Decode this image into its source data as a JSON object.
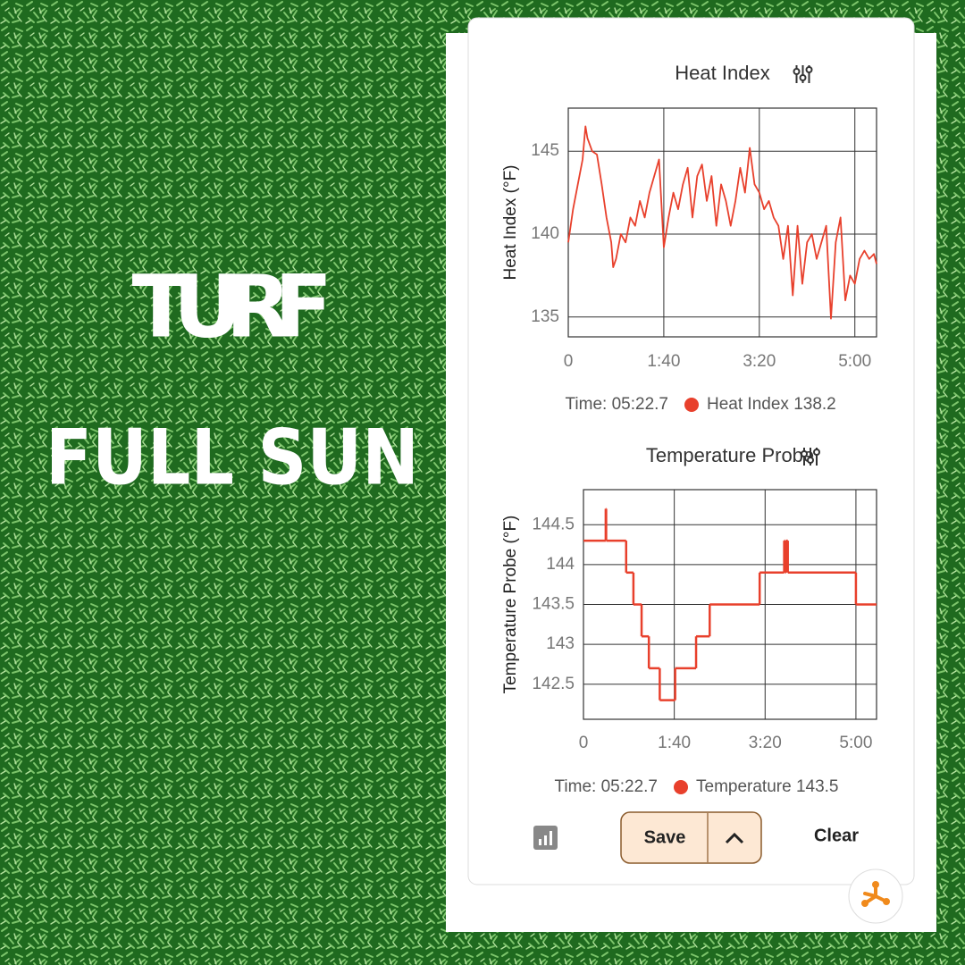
{
  "overlay": {
    "line1": "TURF",
    "line2": "FULL SUN"
  },
  "controls": {
    "save": "Save",
    "clear": "Clear"
  },
  "chart_data": [
    {
      "type": "line",
      "title": "Heat Index",
      "y_label": "Heat Index (°F)",
      "x": [
        0,
        5,
        10,
        15,
        18,
        20,
        25,
        30,
        35,
        40,
        45,
        47,
        50,
        55,
        60,
        65,
        70,
        75,
        80,
        85,
        90,
        95,
        100,
        105,
        110,
        115,
        120,
        125,
        130,
        135,
        140,
        145,
        150,
        155,
        160,
        165,
        170,
        175,
        180,
        185,
        190,
        195,
        200,
        205,
        210,
        215,
        220,
        225,
        230,
        235,
        240,
        245,
        250,
        255,
        260,
        265,
        270,
        275,
        280,
        285,
        290,
        295,
        300,
        305,
        310,
        315,
        320,
        322.7
      ],
      "series": [
        {
          "name": "Heat Index",
          "color": "#e8402c",
          "values": [
            139.5,
            141.5,
            143,
            144.5,
            146.5,
            145.8,
            145,
            144.8,
            143,
            141,
            139.5,
            138,
            138.5,
            140,
            139.5,
            141,
            140.5,
            142,
            141,
            142.5,
            143.5,
            144.5,
            139.2,
            141,
            142.5,
            141.5,
            143,
            144,
            141,
            143.5,
            144.2,
            142,
            143.5,
            140.5,
            143,
            142,
            140.5,
            142,
            144,
            142.5,
            145.2,
            143,
            142.5,
            141.5,
            142,
            141,
            140.5,
            138.5,
            140.5,
            136.3,
            140.5,
            137,
            139.5,
            140,
            138.5,
            139.5,
            140.5,
            134.9,
            139.5,
            141,
            136,
            137.5,
            137,
            138.5,
            139,
            138.5,
            138.8,
            138.2
          ]
        }
      ],
      "xlim": [
        0,
        322.7
      ],
      "ylim": [
        133.8,
        147.6
      ],
      "xticks": [
        {
          "value": 0,
          "label": "0"
        },
        {
          "value": 100,
          "label": "1:40"
        },
        {
          "value": 200,
          "label": "3:20"
        },
        {
          "value": 300,
          "label": "5:00"
        }
      ],
      "yticks": [
        135,
        140,
        145
      ],
      "grid": true,
      "step": false,
      "readout": {
        "time": "Time: 05:22.7",
        "value": 138.2
      }
    },
    {
      "type": "line",
      "title": "Temperature Probe",
      "y_label": "Temperature Probe (°F)",
      "x": [
        0,
        24.5,
        25,
        47,
        55,
        64,
        72,
        84,
        101,
        124,
        139,
        194,
        221,
        222,
        223,
        225,
        300,
        322.7
      ],
      "series": [
        {
          "name": "Temperature",
          "color": "#e8402c",
          "values": [
            144.3,
            144.7,
            144.3,
            143.9,
            143.5,
            143.1,
            142.7,
            142.3,
            142.7,
            143.1,
            143.5,
            143.9,
            144.3,
            143.9,
            144.3,
            143.9,
            143.5,
            143.5
          ]
        }
      ],
      "xlim": [
        0,
        322.7
      ],
      "ylim": [
        142.06,
        144.94
      ],
      "xticks": [
        {
          "value": 0,
          "label": "0"
        },
        {
          "value": 100,
          "label": "1:40"
        },
        {
          "value": 200,
          "label": "3:20"
        },
        {
          "value": 300,
          "label": "5:00"
        }
      ],
      "yticks": [
        142.5,
        143,
        143.5,
        144,
        144.5
      ],
      "grid": true,
      "step": true,
      "readout": {
        "time": "Time: 05:22.7",
        "value": 143.5
      }
    }
  ]
}
